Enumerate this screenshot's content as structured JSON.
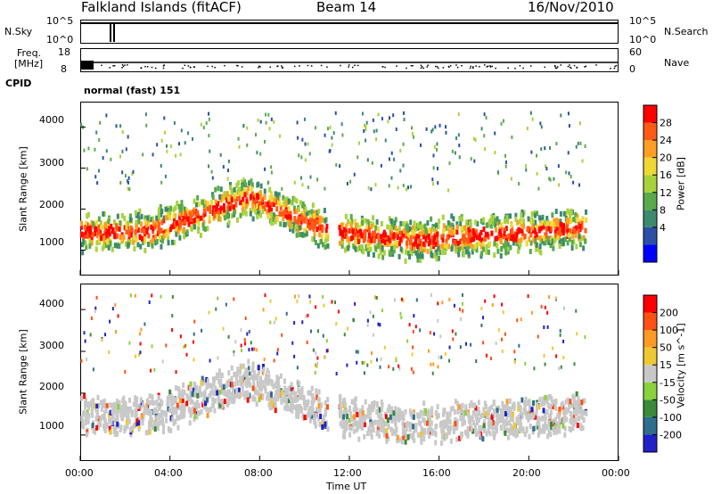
{
  "header": {
    "station": "Falkland Islands (fitACF)",
    "beam": "Beam 14",
    "date": "16/Nov/2010"
  },
  "status_panels": {
    "nsky_label": "N.Sky",
    "nsky_ticks": [
      "10^5",
      "10^0"
    ],
    "nsearch_label": "N.Search",
    "nsearch_ticks": [
      "10^5",
      "10^0"
    ],
    "freq_label_1": "Freq.",
    "freq_label_2": "[MHz]",
    "freq_ticks": [
      "18",
      "8"
    ],
    "nave_label": "Nave",
    "nave_ticks": [
      "60",
      "0"
    ],
    "cpid_label": "CPID",
    "cpid_value": "normal (fast) 151"
  },
  "chart_data": [
    {
      "type": "heatmap",
      "name": "power",
      "ylabel": "Slant Range [km]",
      "ylim": [
        400,
        4600
      ],
      "yticks": [
        "4000",
        "3000",
        "2000",
        "1000"
      ],
      "colorbar_label": "Power [dB]",
      "colorbar_ticks": [
        "28",
        "24",
        "20",
        "16",
        "12",
        "8",
        "4"
      ],
      "colors": [
        "#0000ff",
        "#2b4fa8",
        "#3c8a6e",
        "#5aaa4a",
        "#a8d23c",
        "#f0d832",
        "#ff9e22",
        "#ff5a14",
        "#ff0000"
      ]
    },
    {
      "type": "heatmap",
      "name": "velocity",
      "ylabel": "Slant Range [km]",
      "ylim": [
        400,
        4600
      ],
      "yticks": [
        "4000",
        "3000",
        "2000",
        "1000"
      ],
      "colorbar_label": "Velocity [m s^-1]",
      "colorbar_ticks": [
        "200",
        "100",
        "50",
        "15",
        "-15",
        "-50",
        "-100",
        "-200"
      ],
      "colors": [
        "#2020c8",
        "#2e6e8e",
        "#3a8a3a",
        "#8ad23c",
        "#c8c8c8",
        "#f0c832",
        "#ff9a22",
        "#ff5014",
        "#ff0000"
      ]
    }
  ],
  "x_axis": {
    "label": "Time UT",
    "ticks": [
      "00:00",
      "04:00",
      "08:00",
      "12:00",
      "16:00",
      "20:00",
      "00:00"
    ]
  }
}
